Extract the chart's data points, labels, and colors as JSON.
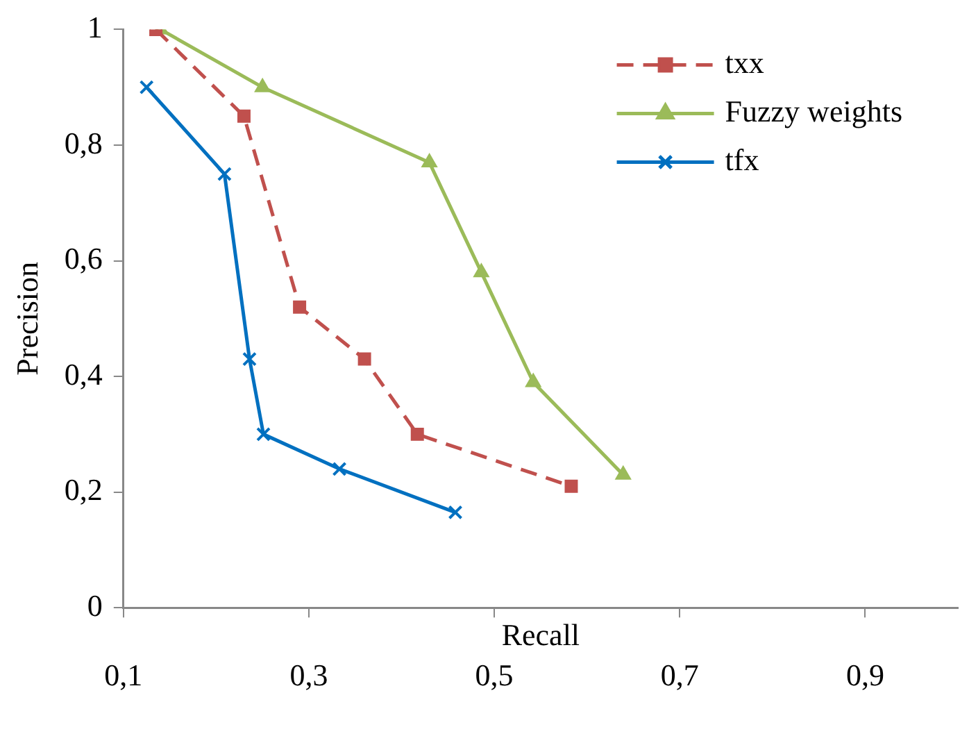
{
  "chart_data": {
    "type": "line",
    "xlabel": "Recall",
    "ylabel": "Precision",
    "xlim": [
      0.1,
      1.0
    ],
    "xticks": [
      {
        "value": 0.1,
        "label": "0,1"
      },
      {
        "value": 0.3,
        "label": "0,3"
      },
      {
        "value": 0.5,
        "label": "0,5"
      },
      {
        "value": 0.7,
        "label": "0,7"
      },
      {
        "value": 0.9,
        "label": "0,9"
      }
    ],
    "ylim": [
      0,
      1
    ],
    "yticks": [
      0,
      {
        "value": 0.2,
        "label": "0,2"
      },
      {
        "value": 0.4,
        "label": "0,4"
      },
      {
        "value": 0.6,
        "label": "0,6"
      },
      {
        "value": 0.8,
        "label": "0,8"
      },
      1
    ],
    "grid": false,
    "legend": "top right",
    "series": [
      {
        "name": "txx",
        "color": "#c0504d",
        "marker": "square",
        "line_style": "dashed",
        "x": [
          0.135,
          0.23,
          0.29,
          0.36,
          0.417,
          0.583
        ],
        "values": [
          1.0,
          0.85,
          0.52,
          0.43,
          0.3,
          0.21
        ]
      },
      {
        "name": "Fuzzy weights",
        "color": "#9bbb59",
        "marker": "triangle",
        "line_style": "solid",
        "x": [
          0.14,
          0.25,
          0.43,
          0.486,
          0.542,
          0.639
        ],
        "values": [
          1.0,
          0.9,
          0.77,
          0.58,
          0.39,
          0.23
        ]
      },
      {
        "name": "tfx",
        "color": "#0070c0",
        "marker": "cross",
        "line_style": "solid",
        "x": [
          0.125,
          0.209,
          0.236,
          0.251,
          0.333,
          0.458
        ],
        "values": [
          0.9,
          0.75,
          0.43,
          0.3,
          0.24,
          0.165
        ]
      }
    ]
  }
}
